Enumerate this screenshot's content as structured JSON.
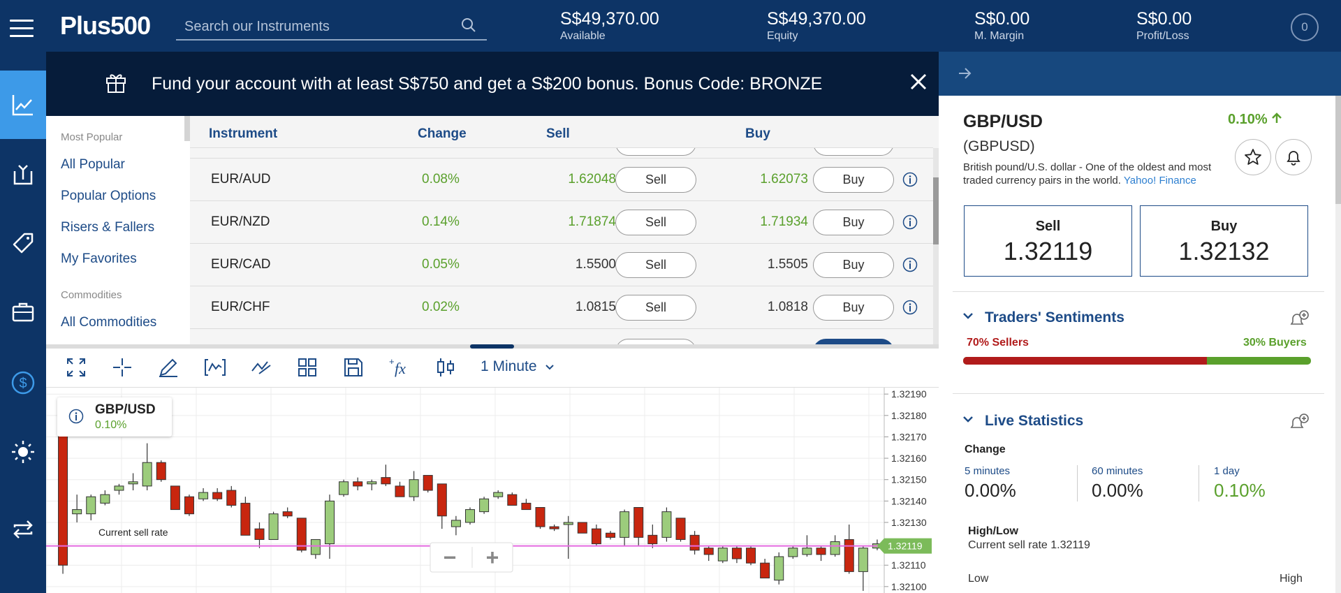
{
  "header": {
    "logo": "Plus500",
    "search_placeholder": "Search our Instruments",
    "stats": [
      {
        "value": "S$49,370.00",
        "label": "Available"
      },
      {
        "value": "S$49,370.00",
        "label": "Equity"
      },
      {
        "value": "S$0.00",
        "label": "M. Margin"
      },
      {
        "value": "S$0.00",
        "label": "Profit/Loss"
      }
    ],
    "account_badge": "0"
  },
  "banner": {
    "text": "Fund your account with at least S$750 and get a S$200 bonus. Bonus Code: BRONZE"
  },
  "categories": {
    "groups": [
      {
        "heading": "Most Popular",
        "items": [
          "All Popular",
          "Popular Options",
          "Risers & Fallers",
          "My Favorites"
        ]
      },
      {
        "heading": "Commodities",
        "items": [
          "All Commodities"
        ]
      }
    ]
  },
  "table": {
    "headers": {
      "instrument": "Instrument",
      "change": "Change",
      "sell": "Sell",
      "buy": "Buy"
    },
    "rows": [
      {
        "instrument": "EUR/AUD",
        "change": "0.08%",
        "sell": "1.62048",
        "buy": "1.62073",
        "sell_btn": "Sell",
        "buy_btn": "Buy",
        "sell_color": "#5aa02c",
        "buy_color": "#5aa02c"
      },
      {
        "instrument": "EUR/NZD",
        "change": "0.14%",
        "sell": "1.71874",
        "buy": "1.71934",
        "sell_btn": "Sell",
        "buy_btn": "Buy",
        "sell_color": "#5aa02c",
        "buy_color": "#5aa02c"
      },
      {
        "instrument": "EUR/CAD",
        "change": "0.05%",
        "sell": "1.5500",
        "buy": "1.5505",
        "sell_btn": "Sell",
        "buy_btn": "Buy",
        "sell_color": "#333333",
        "buy_color": "#333333"
      },
      {
        "instrument": "EUR/CHF",
        "change": "0.02%",
        "sell": "1.0815",
        "buy": "1.0818",
        "sell_btn": "Sell",
        "buy_btn": "Buy",
        "sell_color": "#333333",
        "buy_color": "#333333"
      }
    ]
  },
  "chart_toolbar": {
    "timeframe": "1 Minute"
  },
  "chart": {
    "legend_symbol": "GBP/USD",
    "legend_change": "0.10%",
    "current_sell_label": "Current sell rate",
    "current_price": "1.32119",
    "y_ticks": [
      "1.32190",
      "1.32180",
      "1.32170",
      "1.32160",
      "1.32150",
      "1.32140",
      "1.32130",
      "1.32120",
      "1.32110",
      "1.32100"
    ],
    "zoom_out": "−",
    "zoom_in": "+"
  },
  "chart_data": {
    "type": "candlestick",
    "ylim": [
      1.32097,
      1.32193
    ],
    "current_price": 1.32119,
    "colors": {
      "up": "#9ccc7c",
      "down": "#c8260f",
      "line": "#e46ae0"
    },
    "candles": [
      [
        1.3218,
        1.3211,
        1.32184,
        1.32106
      ],
      [
        1.32134,
        1.32136,
        1.32143,
        1.3213
      ],
      [
        1.32134,
        1.32142,
        1.32143,
        1.32131
      ],
      [
        1.32139,
        1.32143,
        1.32145,
        1.32138
      ],
      [
        1.32145,
        1.32147,
        1.32148,
        1.32143
      ],
      [
        1.32148,
        1.32149,
        1.32153,
        1.32145
      ],
      [
        1.32147,
        1.32158,
        1.32167,
        1.32145
      ],
      [
        1.32158,
        1.3215,
        1.32159,
        1.32149
      ],
      [
        1.32147,
        1.32136,
        1.32147,
        1.32136
      ],
      [
        1.32142,
        1.32134,
        1.32143,
        1.32133
      ],
      [
        1.32141,
        1.32144,
        1.32146,
        1.3214
      ],
      [
        1.32144,
        1.32141,
        1.32146,
        1.3214
      ],
      [
        1.32145,
        1.32138,
        1.32147,
        1.32137
      ],
      [
        1.32139,
        1.32124,
        1.32142,
        1.32124
      ],
      [
        1.32127,
        1.32122,
        1.3213,
        1.32118
      ],
      [
        1.32122,
        1.32134,
        1.32135,
        1.32122
      ],
      [
        1.32135,
        1.32133,
        1.32137,
        1.32132
      ],
      [
        1.32132,
        1.32117,
        1.32132,
        1.32116
      ],
      [
        1.32115,
        1.32122,
        1.32122,
        1.32113
      ],
      [
        1.3212,
        1.3214,
        1.32143,
        1.32113
      ],
      [
        1.32143,
        1.32149,
        1.3215,
        1.32142
      ],
      [
        1.32149,
        1.32147,
        1.32151,
        1.32145
      ],
      [
        1.32148,
        1.32149,
        1.3215,
        1.32145
      ],
      [
        1.32151,
        1.32148,
        1.32157,
        1.32147
      ],
      [
        1.32147,
        1.32142,
        1.32149,
        1.32142
      ],
      [
        1.32142,
        1.3215,
        1.32154,
        1.3214
      ],
      [
        1.32152,
        1.32145,
        1.32152,
        1.32144
      ],
      [
        1.32148,
        1.32133,
        1.32148,
        1.32127
      ],
      [
        1.32128,
        1.32131,
        1.32133,
        1.32124
      ],
      [
        1.3213,
        1.32136,
        1.32137,
        1.32129
      ],
      [
        1.32135,
        1.32141,
        1.32142,
        1.32134
      ],
      [
        1.32142,
        1.32144,
        1.32145,
        1.32141
      ],
      [
        1.32143,
        1.32138,
        1.32144,
        1.32138
      ],
      [
        1.32139,
        1.32136,
        1.32141,
        1.32136
      ],
      [
        1.32137,
        1.32128,
        1.32137,
        1.32127
      ],
      [
        1.32128,
        1.32127,
        1.32129,
        1.32126
      ],
      [
        1.32129,
        1.3213,
        1.32133,
        1.32113
      ],
      [
        1.3213,
        1.32125,
        1.3213,
        1.32125
      ],
      [
        1.32127,
        1.3212,
        1.32129,
        1.32119
      ],
      [
        1.32125,
        1.32123,
        1.32126,
        1.32122
      ],
      [
        1.32123,
        1.32135,
        1.32136,
        1.32119
      ],
      [
        1.32137,
        1.32123,
        1.32137,
        1.32119
      ],
      [
        1.32124,
        1.3212,
        1.32129,
        1.32118
      ],
      [
        1.32123,
        1.32135,
        1.32137,
        1.32121
      ],
      [
        1.32132,
        1.32122,
        1.32132,
        1.32121
      ],
      [
        1.32124,
        1.32117,
        1.32126,
        1.32115
      ],
      [
        1.32118,
        1.32115,
        1.32119,
        1.32112
      ],
      [
        1.32112,
        1.32118,
        1.32119,
        1.32111
      ],
      [
        1.32118,
        1.32113,
        1.32119,
        1.32111
      ],
      [
        1.32118,
        1.32111,
        1.32119,
        1.3211
      ],
      [
        1.32111,
        1.32104,
        1.32113,
        1.32104
      ],
      [
        1.32103,
        1.32114,
        1.32116,
        1.32101
      ],
      [
        1.32114,
        1.32118,
        1.32119,
        1.32113
      ],
      [
        1.32115,
        1.32118,
        1.32124,
        1.32114
      ],
      [
        1.32118,
        1.32115,
        1.32119,
        1.32112
      ],
      [
        1.32115,
        1.32121,
        1.32124,
        1.32114
      ],
      [
        1.32122,
        1.32107,
        1.32129,
        1.32106
      ],
      [
        1.32107,
        1.32118,
        1.32119,
        1.32098
      ],
      [
        1.32118,
        1.3212,
        1.32122,
        1.32117
      ]
    ]
  },
  "detail": {
    "symbol": "GBP/USD",
    "change": "0.10%",
    "code": "(GBPUSD)",
    "description": "British pound/U.S. dollar - One of the oldest and most traded currency pairs in the world.",
    "source_link": "Yahoo! Finance",
    "sell_label": "Sell",
    "sell_price": "1.32119",
    "buy_label": "Buy",
    "buy_price": "1.32132",
    "sentiments_title": "Traders' Sentiments",
    "sellers_label": "70% Sellers",
    "buyers_label": "30% Buyers",
    "sellers_fraction": 0.7,
    "sellers_color": "#b11b1b",
    "buyers_color": "#5aa02c",
    "live_stats_title": "Live Statistics",
    "change_heading": "Change",
    "stats": [
      {
        "label": "5 minutes",
        "value": "0.00%"
      },
      {
        "label": "60 minutes",
        "value": "0.00%"
      },
      {
        "label": "1 day",
        "value": "0.10%"
      }
    ],
    "highlow_heading": "High/Low",
    "current_sell_rate": "Current sell rate 1.32119",
    "low_label": "Low",
    "high_label": "High"
  }
}
